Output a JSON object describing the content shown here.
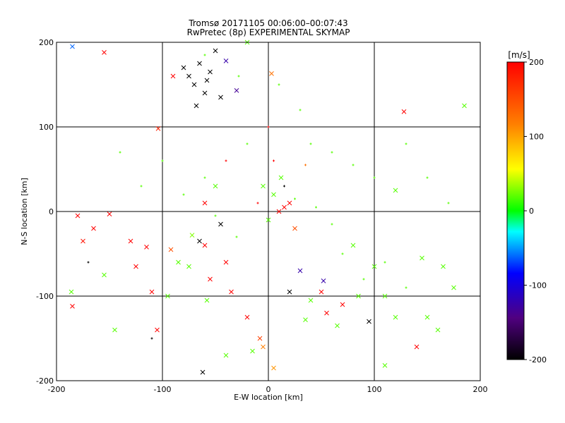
{
  "chart_data": {
    "type": "scatter",
    "title": "Tromsø 20171105 00:06:00–00:07:43",
    "subtitle": "RwPretec (8p) EXPERIMENTAL SKYMAP",
    "xlabel": "E-W location [km]",
    "ylabel": "N-S location [km]",
    "xlim": [
      -200,
      200
    ],
    "ylim": [
      -200,
      200
    ],
    "xticks": [
      -200,
      -100,
      0,
      100,
      200
    ],
    "yticks": [
      -200,
      -100,
      0,
      100,
      200
    ],
    "grid": true,
    "markers": [
      "x (large)",
      "+ (small)"
    ],
    "colorbar": {
      "label": "[m/s]",
      "range": [
        -200,
        200
      ],
      "ticks": [
        200,
        100,
        0,
        -100,
        -200
      ],
      "colormap": [
        "#000000",
        "#500080",
        "#0000ff",
        "#00ffff",
        "#00ff00",
        "#ffff00",
        "#ff8000",
        "#ff0000"
      ],
      "placement": "right"
    },
    "points_large_x": [
      {
        "x": -155,
        "y": 188,
        "v": 200
      },
      {
        "x": -185,
        "y": 195,
        "v": -60
      },
      {
        "x": -80,
        "y": 170,
        "v": -200
      },
      {
        "x": -75,
        "y": 160,
        "v": -200
      },
      {
        "x": -70,
        "y": 150,
        "v": -200
      },
      {
        "x": -65,
        "y": 175,
        "v": -200
      },
      {
        "x": -60,
        "y": 140,
        "v": -200
      },
      {
        "x": -55,
        "y": 165,
        "v": -200
      },
      {
        "x": -50,
        "y": 190,
        "v": -200
      },
      {
        "x": -45,
        "y": 135,
        "v": -200
      },
      {
        "x": -68,
        "y": 125,
        "v": -200
      },
      {
        "x": -58,
        "y": 155,
        "v": -200
      },
      {
        "x": -90,
        "y": 160,
        "v": 200
      },
      {
        "x": -40,
        "y": 178,
        "v": -120
      },
      {
        "x": -30,
        "y": 143,
        "v": -130
      },
      {
        "x": 3,
        "y": 163,
        "v": 130
      },
      {
        "x": -20,
        "y": 200,
        "v": 20
      },
      {
        "x": -104,
        "y": 98,
        "v": 180
      },
      {
        "x": -180,
        "y": -5,
        "v": 200
      },
      {
        "x": -165,
        "y": -20,
        "v": 200
      },
      {
        "x": -175,
        "y": -35,
        "v": 190
      },
      {
        "x": -150,
        "y": -3,
        "v": 200
      },
      {
        "x": -130,
        "y": -35,
        "v": 200
      },
      {
        "x": -125,
        "y": -65,
        "v": 200
      },
      {
        "x": -110,
        "y": -95,
        "v": 200
      },
      {
        "x": -115,
        "y": -42,
        "v": 200
      },
      {
        "x": -185,
        "y": -112,
        "v": 200
      },
      {
        "x": -186,
        "y": -95,
        "v": 20
      },
      {
        "x": -105,
        "y": -140,
        "v": 200
      },
      {
        "x": -65,
        "y": -35,
        "v": -200
      },
      {
        "x": -60,
        "y": -40,
        "v": 200
      },
      {
        "x": -72,
        "y": -28,
        "v": 30
      },
      {
        "x": -45,
        "y": -15,
        "v": -200
      },
      {
        "x": -50,
        "y": 30,
        "v": 20
      },
      {
        "x": -60,
        "y": 10,
        "v": 200
      },
      {
        "x": -40,
        "y": -60,
        "v": 200
      },
      {
        "x": -55,
        "y": -80,
        "v": 200
      },
      {
        "x": -35,
        "y": -95,
        "v": 200
      },
      {
        "x": -75,
        "y": -65,
        "v": 20
      },
      {
        "x": -92,
        "y": -45,
        "v": 150
      },
      {
        "x": -58,
        "y": -105,
        "v": 20
      },
      {
        "x": -62,
        "y": -190,
        "v": -200
      },
      {
        "x": -40,
        "y": -170,
        "v": 20
      },
      {
        "x": -15,
        "y": -165,
        "v": 20
      },
      {
        "x": -8,
        "y": -150,
        "v": 160
      },
      {
        "x": -20,
        "y": -125,
        "v": 200
      },
      {
        "x": -85,
        "y": -60,
        "v": 20
      },
      {
        "x": -95,
        "y": -100,
        "v": 20
      },
      {
        "x": -145,
        "y": -140,
        "v": 20
      },
      {
        "x": -155,
        "y": -75,
        "v": 20
      },
      {
        "x": 5,
        "y": 20,
        "v": 20
      },
      {
        "x": 10,
        "y": 0,
        "v": 200
      },
      {
        "x": 15,
        "y": 5,
        "v": 200
      },
      {
        "x": 20,
        "y": 10,
        "v": 200
      },
      {
        "x": 0,
        "y": -10,
        "v": 20
      },
      {
        "x": 12,
        "y": 40,
        "v": 20
      },
      {
        "x": -5,
        "y": 30,
        "v": 20
      },
      {
        "x": 25,
        "y": -20,
        "v": 150
      },
      {
        "x": 30,
        "y": -70,
        "v": -120
      },
      {
        "x": 52,
        "y": -82,
        "v": -120
      },
      {
        "x": 40,
        "y": -105,
        "v": 20
      },
      {
        "x": 55,
        "y": -120,
        "v": 200
      },
      {
        "x": 70,
        "y": -110,
        "v": 200
      },
      {
        "x": 85,
        "y": -100,
        "v": 20
      },
      {
        "x": 95,
        "y": -130,
        "v": -200
      },
      {
        "x": 110,
        "y": -100,
        "v": 20
      },
      {
        "x": 120,
        "y": -125,
        "v": 20
      },
      {
        "x": 140,
        "y": -160,
        "v": 200
      },
      {
        "x": 150,
        "y": -125,
        "v": 20
      },
      {
        "x": 160,
        "y": -140,
        "v": 20
      },
      {
        "x": 175,
        "y": -90,
        "v": 20
      },
      {
        "x": 165,
        "y": -65,
        "v": 20
      },
      {
        "x": 145,
        "y": -55,
        "v": 20
      },
      {
        "x": 120,
        "y": 25,
        "v": 20
      },
      {
        "x": 128,
        "y": 118,
        "v": 200
      },
      {
        "x": 185,
        "y": 125,
        "v": 20
      },
      {
        "x": 100,
        "y": -65,
        "v": 20
      },
      {
        "x": 80,
        "y": -40,
        "v": 20
      },
      {
        "x": 50,
        "y": -95,
        "v": 200
      },
      {
        "x": 35,
        "y": -128,
        "v": 20
      },
      {
        "x": 65,
        "y": -135,
        "v": 20
      },
      {
        "x": 110,
        "y": -182,
        "v": 20
      },
      {
        "x": 20,
        "y": -95,
        "v": -200
      },
      {
        "x": 5,
        "y": -185,
        "v": 110
      },
      {
        "x": -5,
        "y": -160,
        "v": 120
      }
    ],
    "points_small_plus": [
      {
        "x": -60,
        "y": 185,
        "v": 20
      },
      {
        "x": -28,
        "y": 160,
        "v": 20
      },
      {
        "x": 10,
        "y": 150,
        "v": 20
      },
      {
        "x": 30,
        "y": 120,
        "v": 20
      },
      {
        "x": 40,
        "y": 80,
        "v": 20
      },
      {
        "x": 60,
        "y": 70,
        "v": 20
      },
      {
        "x": 80,
        "y": 55,
        "v": 20
      },
      {
        "x": 100,
        "y": 40,
        "v": 20
      },
      {
        "x": -20,
        "y": 80,
        "v": 20
      },
      {
        "x": -40,
        "y": 60,
        "v": 200
      },
      {
        "x": -60,
        "y": 40,
        "v": 20
      },
      {
        "x": -80,
        "y": 20,
        "v": 20
      },
      {
        "x": 5,
        "y": 60,
        "v": 200
      },
      {
        "x": 15,
        "y": 30,
        "v": -200
      },
      {
        "x": 25,
        "y": 15,
        "v": 20
      },
      {
        "x": -10,
        "y": 10,
        "v": 200
      },
      {
        "x": 45,
        "y": 5,
        "v": 20
      },
      {
        "x": 60,
        "y": -15,
        "v": 20
      },
      {
        "x": 70,
        "y": -50,
        "v": 20
      },
      {
        "x": 90,
        "y": -80,
        "v": 20
      },
      {
        "x": 110,
        "y": -60,
        "v": 20
      },
      {
        "x": 130,
        "y": -90,
        "v": 20
      },
      {
        "x": -30,
        "y": -30,
        "v": 20
      },
      {
        "x": -50,
        "y": -5,
        "v": 20
      },
      {
        "x": -100,
        "y": 60,
        "v": 20
      },
      {
        "x": -120,
        "y": 30,
        "v": 20
      },
      {
        "x": -140,
        "y": 70,
        "v": 20
      },
      {
        "x": 150,
        "y": 40,
        "v": 20
      },
      {
        "x": 170,
        "y": 10,
        "v": 20
      },
      {
        "x": 130,
        "y": 80,
        "v": 20
      },
      {
        "x": -170,
        "y": -60,
        "v": -200
      },
      {
        "x": -110,
        "y": -150,
        "v": -200
      },
      {
        "x": 0,
        "y": 100,
        "v": 200
      },
      {
        "x": 35,
        "y": 55,
        "v": 130
      }
    ]
  }
}
